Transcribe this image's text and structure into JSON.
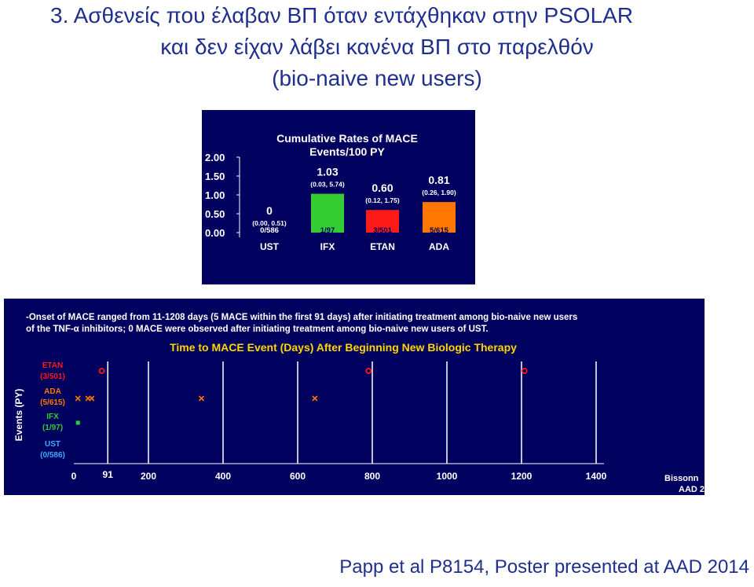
{
  "slide": {
    "title_lines": [
      "3. Ασθενείς που έλαβαν ΒΠ όταν εντάχθηκαν στην PSOLAR",
      "και δεν είχαν λάβει κανένα ΒΠ στο παρελθόν",
      "(bio-naive new users)"
    ],
    "footer": "Papp et al P8154, Poster presented at AAD 2014"
  },
  "colors": {
    "title_text": "#1f2f8f",
    "panel_bg": "#00005e",
    "chart1_title": "#ffffff",
    "chart2_title": "#ffd700",
    "green": "#33cc33",
    "red": "#ff1a1a",
    "orange": "#ff7700"
  },
  "chart_data": [
    {
      "type": "bar",
      "title": "Cumulative Rates of MACE",
      "subtitle": "Events/100 PY",
      "categories": [
        "UST",
        "IFX",
        "ETAN",
        "ADA"
      ],
      "values": [
        0,
        1.03,
        0.6,
        0.81
      ],
      "value_labels": [
        "0",
        "1.03",
        "0.60",
        "0.81"
      ],
      "ci_labels": [
        "(0.00, 0.51)",
        "(0.03, 5.74)",
        "(0.12, 1.75)",
        "(0.26, 1.90)"
      ],
      "count_labels": [
        "0/586",
        "1/97",
        "3/501",
        "5/615"
      ],
      "bar_colors": [
        "none",
        "#33cc33",
        "#ff1a1a",
        "#ff7700"
      ],
      "yticks": [
        "2.00",
        "1.50",
        "1.00",
        "0.50",
        "0.00"
      ],
      "ylim": [
        0,
        2.0
      ],
      "grid": false
    },
    {
      "type": "scatter",
      "notes": [
        "-Onset of MACE ranged from 11-1208 days (5 MACE within the first 91 days) after initiating treatment among bio-naive new users",
        "of the TNF-α inhibitors; 0 MACE were observed after initiating treatment among bio-naive new users of UST."
      ],
      "title": "Time to MACE Event (Days) After Beginning New Biologic Therapy",
      "ylabel": "Events (PY)",
      "rows": [
        {
          "name": "ETAN",
          "count": "(3/501)",
          "color": "#ff1a1a"
        },
        {
          "name": "ADA",
          "count": "(5/615)",
          "color": "#ff7700"
        },
        {
          "name": "IFX",
          "count": "(1/97)",
          "color": "#33cc33"
        },
        {
          "name": "UST",
          "count": "(0/586)",
          "color": "#3fa9ff"
        }
      ],
      "x_ticks": [
        0,
        91,
        200,
        400,
        600,
        800,
        1000,
        1200,
        1400
      ],
      "x_range": [
        0,
        1400
      ],
      "guide_lines": [
        91,
        200,
        400,
        600,
        800,
        1000,
        1200,
        1400
      ],
      "events": [
        {
          "row": "ETAN",
          "day": 75,
          "marker": "o"
        },
        {
          "row": "ETAN",
          "day": 790,
          "marker": "o"
        },
        {
          "row": "ETAN",
          "day": 1208,
          "marker": "o"
        },
        {
          "row": "ADA",
          "day": 11,
          "marker": "x"
        },
        {
          "row": "ADA",
          "day": 38,
          "marker": "x"
        },
        {
          "row": "ADA",
          "day": 48,
          "marker": "x"
        },
        {
          "row": "ADA",
          "day": 342,
          "marker": "x"
        },
        {
          "row": "ADA",
          "day": 646,
          "marker": "x"
        },
        {
          "row": "IFX",
          "day": 11,
          "marker": "square"
        }
      ],
      "citation": [
        "Bissonn",
        "AAD 2"
      ]
    }
  ]
}
